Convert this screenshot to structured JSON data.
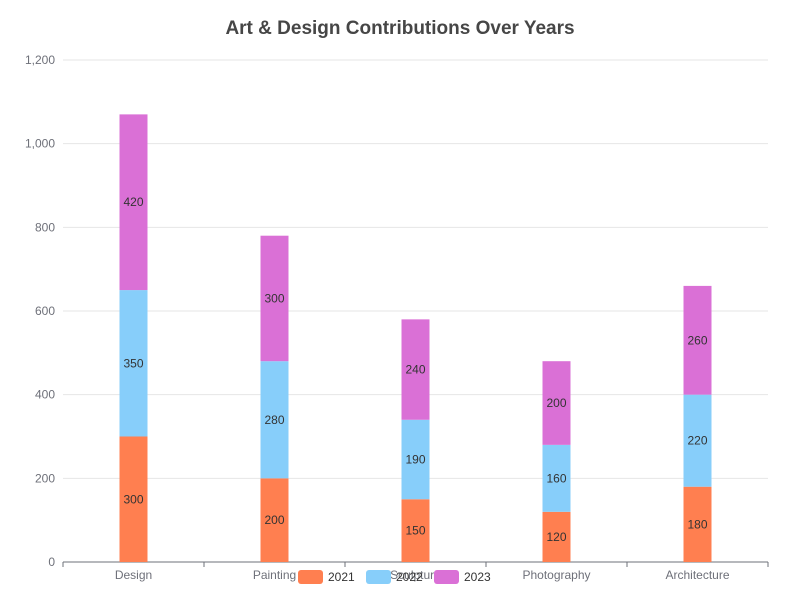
{
  "chart_data": {
    "type": "bar",
    "stacked": true,
    "title": "Art & Design Contributions Over Years",
    "xlabel": "",
    "ylabel": "",
    "categories": [
      "Design",
      "Painting",
      "Sculpture",
      "Photography",
      "Architecture"
    ],
    "series": [
      {
        "name": "2021",
        "color": "#ff7f50",
        "values": [
          300,
          200,
          150,
          120,
          180
        ]
      },
      {
        "name": "2022",
        "color": "#87cefa",
        "values": [
          350,
          280,
          190,
          160,
          220
        ]
      },
      {
        "name": "2023",
        "color": "#da70d6",
        "values": [
          420,
          300,
          240,
          200,
          260
        ]
      }
    ],
    "ylim": [
      0,
      1200
    ],
    "yticks": [
      0,
      200,
      400,
      600,
      800,
      1000,
      1200
    ],
    "ytick_labels": [
      "0",
      "200",
      "400",
      "600",
      "800",
      "1,000",
      "1,200"
    ],
    "grid": true,
    "legend_position": "bottom-center",
    "data_labels": true
  }
}
